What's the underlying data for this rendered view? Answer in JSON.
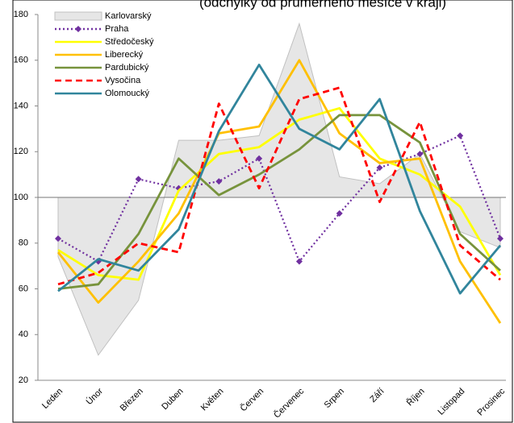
{
  "chart_data": {
    "type": "line",
    "title": "(odchylky od průměrného měsíce v kraji)",
    "categories": [
      "Leden",
      "Únor",
      "Březen",
      "Duben",
      "Květen",
      "Červen",
      "Červenec",
      "Srpen",
      "Září",
      "Říjen",
      "Listopad",
      "Prosinec"
    ],
    "ylim": [
      20,
      180
    ],
    "yticks": [
      20,
      40,
      60,
      80,
      100,
      120,
      140,
      160,
      180
    ],
    "baseline": 100,
    "series": [
      {
        "name": "Karlovarský",
        "kind": "area",
        "color": "#e6e6e6",
        "values": [
          74,
          31,
          55,
          125,
          125,
          127,
          176,
          109,
          106,
          119,
          85,
          78
        ]
      },
      {
        "name": "Praha",
        "kind": "line",
        "color": "#7030a0",
        "dash": "dot",
        "marker": "diamond",
        "values": [
          82,
          72,
          108,
          104,
          107,
          117,
          72,
          93,
          113,
          119,
          127,
          82
        ]
      },
      {
        "name": "Středočeský",
        "kind": "line",
        "color": "#ffff00",
        "values": [
          77,
          66,
          64,
          103,
          119,
          122,
          134,
          139,
          117,
          110,
          96,
          66
        ]
      },
      {
        "name": "Liberecký",
        "kind": "line",
        "color": "#ffc000",
        "values": [
          76,
          54,
          72,
          93,
          128,
          131,
          160,
          128,
          115,
          117,
          72,
          45
        ]
      },
      {
        "name": "Pardubický",
        "kind": "line",
        "color": "#77933c",
        "values": [
          60,
          62,
          84,
          117,
          101,
          110,
          121,
          136,
          136,
          124,
          84,
          68
        ]
      },
      {
        "name": "Vysočina",
        "kind": "line",
        "color": "#ff0000",
        "dash": "dash",
        "values": [
          62,
          67,
          80,
          76,
          141,
          104,
          143,
          148,
          98,
          133,
          79,
          64
        ]
      },
      {
        "name": "Olomoucký",
        "kind": "line",
        "color": "#31859c",
        "values": [
          59,
          73,
          68,
          86,
          129,
          158,
          130,
          121,
          143,
          94,
          58,
          79
        ]
      }
    ]
  }
}
